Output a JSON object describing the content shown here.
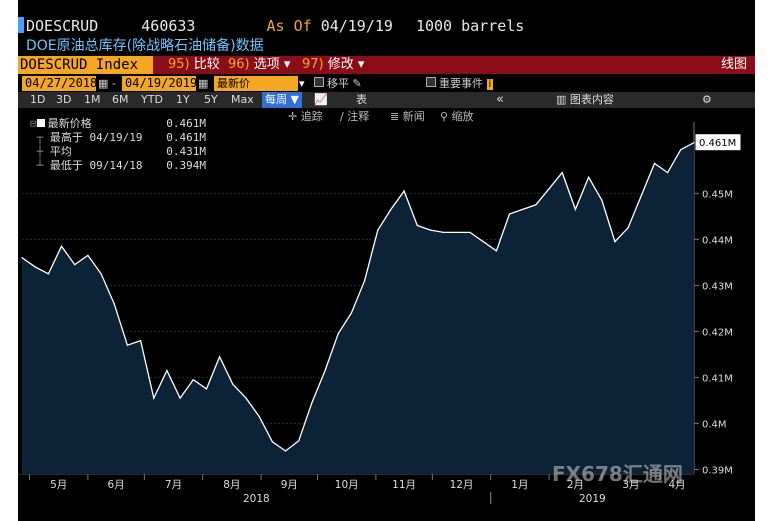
{
  "header": {
    "ticker_code": "DOESCRUD",
    "code_number": "460633",
    "as_of_label": "As Of",
    "as_of_date": "04/19/19",
    "units": "1000 barrels",
    "description": "DOE原油总库存(除战略石油储备)数据"
  },
  "menubar": {
    "security": "DOESCRUD Index",
    "compare_num": "95)",
    "compare_label": "比较",
    "options_num": "96)",
    "options_label": "选项",
    "edit_num": "97)",
    "edit_label": "修改",
    "view_label": "线图"
  },
  "daterow": {
    "start_date": "04/27/2018",
    "separator": "-",
    "end_date": "04/19/2019",
    "price_field": "最新价",
    "moving_avg": "移平",
    "key_events": "重要事件"
  },
  "periods": {
    "items": [
      "1D",
      "3D",
      "1M",
      "6M",
      "YTD",
      "1Y",
      "5Y",
      "Max"
    ],
    "frequency": "每周",
    "table_label": "表",
    "collapse": "«",
    "chart_content": "图表内容",
    "gear": "⚙"
  },
  "tools": {
    "track": "追踪",
    "annotate": "注释",
    "news": "新闻",
    "zoom": "缩放"
  },
  "legend": {
    "last_price_label": "最新价格",
    "last_price_value": "0.461M",
    "high_label": "最高于",
    "high_date": "04/19/19",
    "high_value": "0.461M",
    "avg_label": "平均",
    "avg_value": "0.431M",
    "low_label": "最低于",
    "low_date": "09/14/18",
    "low_value": "0.394M"
  },
  "chart_data": {
    "type": "area",
    "x": [
      "2018-04-27",
      "2018-05-04",
      "2018-05-11",
      "2018-05-18",
      "2018-05-25",
      "2018-06-01",
      "2018-06-08",
      "2018-06-15",
      "2018-06-22",
      "2018-06-29",
      "2018-07-06",
      "2018-07-13",
      "2018-07-20",
      "2018-07-27",
      "2018-08-03",
      "2018-08-10",
      "2018-08-17",
      "2018-08-24",
      "2018-08-31",
      "2018-09-07",
      "2018-09-14",
      "2018-09-21",
      "2018-09-28",
      "2018-10-05",
      "2018-10-12",
      "2018-10-19",
      "2018-10-26",
      "2018-11-02",
      "2018-11-09",
      "2018-11-16",
      "2018-11-23",
      "2018-11-30",
      "2018-12-07",
      "2018-12-14",
      "2018-12-21",
      "2018-12-28",
      "2019-01-04",
      "2019-01-11",
      "2019-01-18",
      "2019-01-25",
      "2019-02-01",
      "2019-02-08",
      "2019-02-15",
      "2019-02-22",
      "2019-03-01",
      "2019-03-08",
      "2019-03-15",
      "2019-03-22",
      "2019-03-29",
      "2019-04-05",
      "2019-04-12",
      "2019-04-19"
    ],
    "values": [
      0.436,
      0.434,
      0.4325,
      0.4385,
      0.4345,
      0.4365,
      0.4325,
      0.426,
      0.417,
      0.418,
      0.4055,
      0.4115,
      0.4055,
      0.4095,
      0.4075,
      0.4145,
      0.4085,
      0.4055,
      0.4015,
      0.396,
      0.394,
      0.3962,
      0.4045,
      0.4115,
      0.4195,
      0.424,
      0.431,
      0.442,
      0.4465,
      0.4505,
      0.443,
      0.442,
      0.4415,
      0.4415,
      0.4415,
      0.4395,
      0.4375,
      0.4455,
      0.4465,
      0.4475,
      0.451,
      0.4545,
      0.4465,
      0.4535,
      0.4485,
      0.4395,
      0.4425,
      0.4495,
      0.4565,
      0.4545,
      0.4595,
      0.461
    ],
    "yticks": [
      "0.39M",
      "0.4M",
      "0.41M",
      "0.42M",
      "0.43M",
      "0.44M",
      "0.45M"
    ],
    "ylim": [
      0.389,
      0.4655
    ],
    "last_label": "0.461M",
    "months": [
      "5月",
      "6月",
      "7月",
      "8月",
      "9月",
      "10月",
      "11月",
      "12月",
      "1月",
      "2月",
      "3月",
      "4月"
    ],
    "years": [
      "2018",
      "2019"
    ],
    "grid": true
  },
  "watermark": "FX678汇通网",
  "colors": {
    "amber": "#f5a623",
    "menu_red": "#8b0d17",
    "area_fill": "#0c2237",
    "line": "#ffffff"
  }
}
